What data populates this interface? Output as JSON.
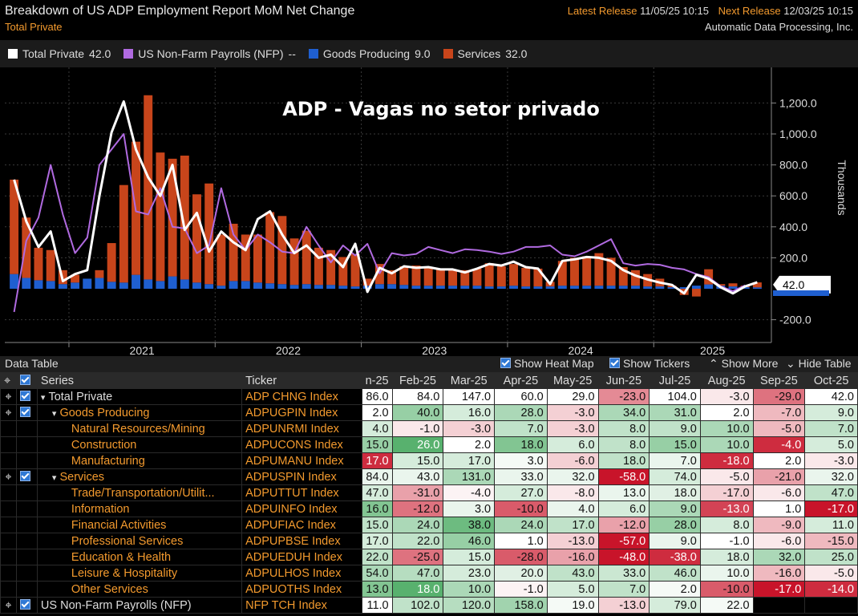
{
  "header": {
    "title": "Breakdown of US ADP Employment Report MoM Net Change",
    "subtitle": "Total Private",
    "latest_label": "Latest Release",
    "latest_value": "11/05/25 10:15",
    "next_label": "Next Release",
    "next_value": "12/03/25 10:15",
    "source": "Automatic Data Processing, Inc."
  },
  "legend": [
    {
      "label": "Total Private",
      "value": "42.0",
      "color": "#ffffff"
    },
    {
      "label": "US Non-Farm Payrolls (NFP)",
      "value": "--",
      "color": "#b06ae0"
    },
    {
      "label": "Goods Producing",
      "value": "9.0",
      "color": "#1f5fd0"
    },
    {
      "label": "Services",
      "value": "32.0",
      "color": "#c8451b"
    }
  ],
  "colors": {
    "total": "#ffffff",
    "nfp": "#b06ae0",
    "goods": "#1f5fd0",
    "services": "#c8451b",
    "accent": "#f39a2e",
    "heat_pos": "#2e9e4a",
    "heat_neg": "#c8142a"
  },
  "chart_data": {
    "type": "bar",
    "title": "ADP - Vagas no setor privado",
    "ylabel": "Thousands",
    "ylim": [
      -300,
      1400
    ],
    "yticks": [
      -200,
      200,
      400,
      600,
      800,
      1000,
      1200
    ],
    "ytick_labels": [
      "-200.0",
      "200.0",
      "400.0",
      "600.0",
      "800.0",
      "1,000.0",
      "1,200.0"
    ],
    "last_value_label": "42.0",
    "year_labels": [
      "2021",
      "2022",
      "2023",
      "2024",
      "2025"
    ],
    "x_start": "2020-08",
    "x_end": "2025-10",
    "series": [
      {
        "name": "Goods Producing",
        "kind": "bar",
        "values": [
          95,
          70,
          55,
          50,
          30,
          40,
          65,
          70,
          45,
          40,
          90,
          60,
          50,
          80,
          60,
          40,
          30,
          20,
          50,
          50,
          40,
          35,
          30,
          25,
          30,
          25,
          25,
          20,
          15,
          20,
          30,
          30,
          25,
          20,
          20,
          20,
          20,
          20,
          20,
          15,
          15,
          20,
          15,
          15,
          15,
          20,
          20,
          20,
          20,
          20,
          20,
          20,
          15,
          15,
          10,
          10,
          20,
          28,
          20,
          15,
          10,
          9
        ]
      },
      {
        "name": "Services",
        "kind": "bar",
        "values": [
          610,
          390,
          210,
          200,
          90,
          50,
          0,
          50,
          250,
          630,
          860,
          1190,
          830,
          760,
          800,
          570,
          650,
          330,
          370,
          300,
          310,
          460,
          440,
          300,
          345,
          240,
          225,
          185,
          210,
          45,
          130,
          90,
          120,
          130,
          120,
          110,
          100,
          100,
          110,
          150,
          130,
          140,
          120,
          115,
          30,
          160,
          180,
          190,
          210,
          180,
          120,
          100,
          80,
          50,
          10,
          -40,
          -50,
          98,
          10,
          20,
          10,
          32
        ]
      },
      {
        "name": "Total Private",
        "kind": "line",
        "values": [
          705,
          435,
          270,
          370,
          50,
          95,
          120,
          600,
          1010,
          1210,
          900,
          720,
          600,
          800,
          380,
          490,
          240,
          370,
          300,
          250,
          450,
          500,
          350,
          230,
          280,
          200,
          220,
          140,
          290,
          -20,
          135,
          100,
          145,
          135,
          140,
          125,
          125,
          105,
          130,
          160,
          150,
          175,
          140,
          130,
          30,
          180,
          190,
          205,
          200,
          180,
          120,
          85,
          60,
          40,
          25,
          -30,
          90,
          65,
          10,
          -30,
          15,
          42
        ]
      },
      {
        "name": "US Non-Farm Payrolls (NFP)",
        "kind": "line",
        "values": [
          -150,
          310,
          460,
          800,
          480,
          230,
          330,
          800,
          900,
          1000,
          500,
          480,
          650,
          400,
          390,
          230,
          280,
          650,
          350,
          250,
          350,
          300,
          240,
          230,
          400,
          280,
          170,
          280,
          215,
          290,
          100,
          230,
          215,
          225,
          270,
          250,
          230,
          255,
          250,
          240,
          225,
          240,
          270,
          270,
          280,
          220,
          210,
          240,
          280,
          320,
          165,
          150,
          160,
          155,
          135,
          125,
          95,
          75,
          15,
          -15,
          22
        ]
      }
    ]
  },
  "data_table": {
    "label": "Data Table",
    "controls": [
      "Show Heat Map",
      "Show Tickers",
      "Show More",
      "Hide Table"
    ],
    "col_series": "Series",
    "col_ticker": "Ticker",
    "months": [
      "n-25",
      "Feb-25",
      "Mar-25",
      "Apr-25",
      "May-25",
      "Jun-25",
      "Jul-25",
      "Aug-25",
      "Sep-25",
      "Oct-25"
    ],
    "rows": [
      {
        "series": "Total Private",
        "ticker": "ADP CHNG Index",
        "level": 0,
        "values": [
          "86.0",
          "84.0",
          "147.0",
          "60.0",
          "29.0",
          "-23.0",
          "104.0",
          "-3.0",
          "-29.0",
          "42.0"
        ],
        "heat": [
          0,
          0,
          0,
          0,
          0,
          -0.5,
          0,
          -0.1,
          -0.6,
          0
        ]
      },
      {
        "series": "Goods Producing",
        "ticker": "ADPUGPIN Index",
        "level": 1,
        "values": [
          "2.0",
          "40.0",
          "16.0",
          "28.0",
          "-3.0",
          "34.0",
          "31.0",
          "2.0",
          "-7.0",
          "9.0"
        ],
        "heat": [
          0,
          0.5,
          0.2,
          0.4,
          -0.2,
          0.4,
          0.4,
          0,
          -0.3,
          0.2
        ]
      },
      {
        "series": "Natural Resources/Mining",
        "ticker": "ADPUNRMI Index",
        "level": 2,
        "values": [
          "4.0",
          "-1.0",
          "-3.0",
          "7.0",
          "-3.0",
          "8.0",
          "9.0",
          "10.0",
          "-5.0",
          "7.0"
        ],
        "heat": [
          0.2,
          -0.1,
          -0.2,
          0.3,
          -0.2,
          0.3,
          0.3,
          0.4,
          -0.3,
          0.3
        ]
      },
      {
        "series": "Construction",
        "ticker": "ADPUCONS Index",
        "level": 2,
        "values": [
          "15.0",
          "26.0",
          "2.0",
          "18.0",
          "6.0",
          "8.0",
          "15.0",
          "10.0",
          "-4.0",
          "5.0"
        ],
        "heat": [
          0.5,
          0.8,
          0,
          0.6,
          0.2,
          0.3,
          0.5,
          0.4,
          -0.9,
          0.2
        ]
      },
      {
        "series": "Manufacturing",
        "ticker": "ADPUMANU Index",
        "level": 2,
        "values": [
          "17.0",
          "15.0",
          "17.0",
          "3.0",
          "-6.0",
          "18.0",
          "7.0",
          "-18.0",
          "2.0",
          "-3.0"
        ],
        "heat": [
          -0.9,
          0.2,
          0.2,
          0.05,
          -0.2,
          0.3,
          0.1,
          -0.9,
          0,
          -0.1
        ]
      },
      {
        "series": "Services",
        "ticker": "ADPUSPIN Index",
        "level": 1,
        "values": [
          "84.0",
          "43.0",
          "131.0",
          "33.0",
          "32.0",
          "-58.0",
          "74.0",
          "-5.0",
          "-21.0",
          "32.0"
        ],
        "heat": [
          0.1,
          0.1,
          0.4,
          0.1,
          0.1,
          -1,
          0.2,
          -0.1,
          -0.4,
          0.1
        ]
      },
      {
        "series": "Trade/Transportation/Utilit...",
        "ticker": "ADPUTTUT Index",
        "level": 2,
        "values": [
          "47.0",
          "-31.0",
          "-4.0",
          "27.0",
          "-8.0",
          "13.0",
          "18.0",
          "-17.0",
          "-6.0",
          "47.0"
        ],
        "heat": [
          0.2,
          -0.4,
          -0.05,
          0.2,
          -0.1,
          0.1,
          0.15,
          -0.2,
          -0.1,
          0.3
        ]
      },
      {
        "series": "Information",
        "ticker": "ADPUINFO Index",
        "level": 2,
        "values": [
          "16.0",
          "-12.0",
          "3.0",
          "-10.0",
          "4.0",
          "6.0",
          "9.0",
          "-13.0",
          "1.0",
          "-17.0"
        ],
        "heat": [
          0.6,
          -0.6,
          0.1,
          -0.7,
          0.1,
          0.2,
          0.4,
          -0.8,
          0,
          -1
        ]
      },
      {
        "series": "Financial Activities",
        "ticker": "ADPUFIAC Index",
        "level": 2,
        "values": [
          "15.0",
          "24.0",
          "38.0",
          "24.0",
          "17.0",
          "-12.0",
          "28.0",
          "8.0",
          "-9.0",
          "11.0"
        ],
        "heat": [
          0.3,
          0.4,
          0.7,
          0.4,
          0.3,
          -0.4,
          0.5,
          0.2,
          -0.3,
          0.2
        ]
      },
      {
        "series": "Professional Services",
        "ticker": "ADPUPBSE Index",
        "level": 2,
        "values": [
          "17.0",
          "22.0",
          "46.0",
          "1.0",
          "-13.0",
          "-57.0",
          "9.0",
          "-1.0",
          "-6.0",
          "-15.0"
        ],
        "heat": [
          0.2,
          0.3,
          0.5,
          0,
          -0.2,
          -1,
          0.1,
          0,
          -0.1,
          -0.3
        ]
      },
      {
        "series": "Education & Health",
        "ticker": "ADPUEDUH Index",
        "level": 2,
        "values": [
          "22.0",
          "-25.0",
          "15.0",
          "-28.0",
          "-16.0",
          "-48.0",
          "-38.0",
          "18.0",
          "32.0",
          "25.0"
        ],
        "heat": [
          0.3,
          -0.6,
          0.2,
          -0.7,
          -0.4,
          -1,
          -0.9,
          0.2,
          0.4,
          0.3
        ]
      },
      {
        "series": "Leisure & Hospitality",
        "ticker": "ADPULHOS Index",
        "level": 2,
        "values": [
          "54.0",
          "47.0",
          "23.0",
          "20.0",
          "43.0",
          "33.0",
          "46.0",
          "10.0",
          "-16.0",
          "-5.0"
        ],
        "heat": [
          0.4,
          0.35,
          0.2,
          0.15,
          0.3,
          0.25,
          0.3,
          0.1,
          -0.3,
          -0.1
        ]
      },
      {
        "series": "Other Services",
        "ticker": "ADPUOTHS Index",
        "level": 2,
        "values": [
          "13.0",
          "18.0",
          "10.0",
          "-1.0",
          "5.0",
          "7.0",
          "2.0",
          "-10.0",
          "-17.0",
          "-14.0"
        ],
        "heat": [
          0.6,
          0.8,
          0.4,
          -0.05,
          0.2,
          0.3,
          0.05,
          -0.7,
          -1,
          -0.9
        ]
      },
      {
        "series": "US Non-Farm Payrolls (NFP)",
        "ticker": "NFP TCH Index",
        "level": 0,
        "values": [
          "11.0",
          "102.0",
          "120.0",
          "158.0",
          "19.0",
          "-13.0",
          "79.0",
          "22.0",
          "",
          ""
        ],
        "heat": [
          0,
          0.3,
          0.35,
          0.45,
          0.05,
          -0.2,
          0.2,
          0.05,
          null,
          null
        ]
      }
    ]
  }
}
